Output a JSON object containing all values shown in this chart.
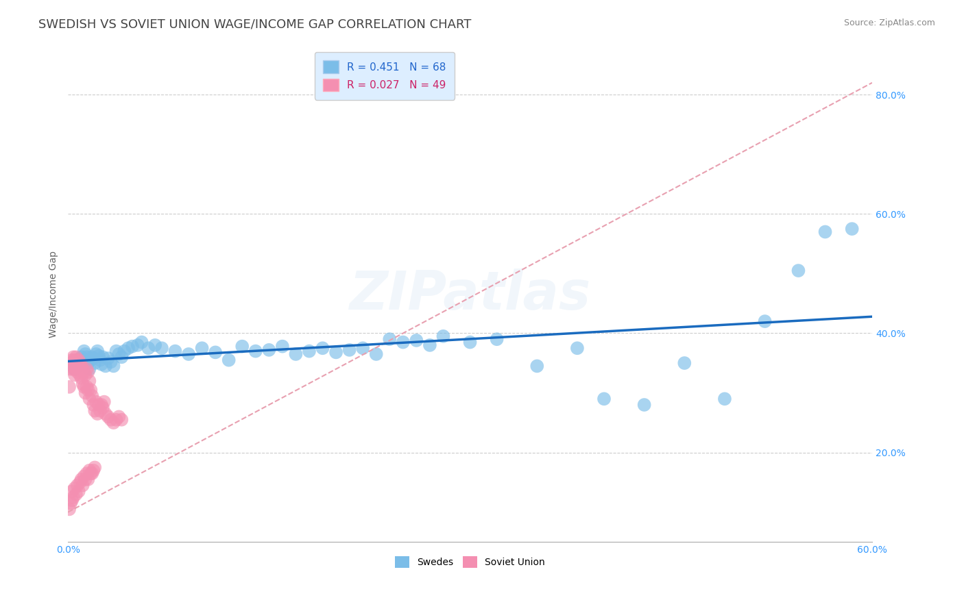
{
  "title": "SWEDISH VS SOVIET UNION WAGE/INCOME GAP CORRELATION CHART",
  "source": "Source: ZipAtlas.com",
  "ylabel": "Wage/Income Gap",
  "xlim": [
    0.0,
    0.6
  ],
  "ylim": [
    0.05,
    0.88
  ],
  "xticks": [
    0.0,
    0.1,
    0.2,
    0.3,
    0.4,
    0.5,
    0.6
  ],
  "xticklabels": [
    "0.0%",
    "",
    "",
    "",
    "",
    "",
    "60.0%"
  ],
  "ytick_positions": [
    0.2,
    0.4,
    0.6,
    0.8
  ],
  "ytick_labels": [
    "20.0%",
    "40.0%",
    "60.0%",
    "80.0%"
  ],
  "swedes_R": 0.451,
  "swedes_N": 68,
  "soviet_R": 0.027,
  "soviet_N": 49,
  "swedes_color": "#7bbde8",
  "soviet_color": "#f48fb1",
  "swedes_line_color": "#1a6bbf",
  "soviet_line_color": "#e8a0b0",
  "background_color": "#ffffff",
  "grid_color": "#cccccc",
  "watermark": "ZIPatlas",
  "legend_box_color": "#ddeeff",
  "swedes_x": [
    0.005,
    0.007,
    0.009,
    0.01,
    0.011,
    0.012,
    0.013,
    0.014,
    0.015,
    0.016,
    0.017,
    0.018,
    0.019,
    0.02,
    0.021,
    0.022,
    0.023,
    0.024,
    0.025,
    0.026,
    0.028,
    0.03,
    0.032,
    0.034,
    0.036,
    0.038,
    0.04,
    0.042,
    0.045,
    0.048,
    0.052,
    0.055,
    0.06,
    0.065,
    0.07,
    0.08,
    0.09,
    0.1,
    0.11,
    0.12,
    0.13,
    0.14,
    0.15,
    0.16,
    0.17,
    0.18,
    0.19,
    0.2,
    0.21,
    0.22,
    0.23,
    0.24,
    0.25,
    0.26,
    0.27,
    0.28,
    0.3,
    0.32,
    0.35,
    0.38,
    0.4,
    0.43,
    0.46,
    0.49,
    0.52,
    0.545,
    0.565,
    0.585
  ],
  "swedes_y": [
    0.34,
    0.345,
    0.35,
    0.36,
    0.355,
    0.37,
    0.365,
    0.36,
    0.35,
    0.34,
    0.355,
    0.36,
    0.358,
    0.35,
    0.365,
    0.37,
    0.362,
    0.355,
    0.348,
    0.36,
    0.345,
    0.358,
    0.352,
    0.345,
    0.37,
    0.365,
    0.36,
    0.37,
    0.375,
    0.378,
    0.38,
    0.385,
    0.375,
    0.38,
    0.375,
    0.37,
    0.365,
    0.375,
    0.368,
    0.355,
    0.378,
    0.37,
    0.372,
    0.378,
    0.365,
    0.37,
    0.375,
    0.368,
    0.372,
    0.375,
    0.365,
    0.39,
    0.385,
    0.388,
    0.38,
    0.395,
    0.385,
    0.39,
    0.345,
    0.375,
    0.29,
    0.28,
    0.35,
    0.29,
    0.42,
    0.505,
    0.57,
    0.575
  ],
  "soviet_x": [
    0.001,
    0.002,
    0.002,
    0.003,
    0.003,
    0.004,
    0.004,
    0.005,
    0.005,
    0.006,
    0.006,
    0.007,
    0.007,
    0.008,
    0.008,
    0.009,
    0.009,
    0.01,
    0.01,
    0.011,
    0.011,
    0.012,
    0.012,
    0.013,
    0.013,
    0.014,
    0.014,
    0.015,
    0.015,
    0.016,
    0.016,
    0.017,
    0.018,
    0.019,
    0.02,
    0.021,
    0.022,
    0.023,
    0.024,
    0.025,
    0.026,
    0.027,
    0.028,
    0.03,
    0.032,
    0.034,
    0.036,
    0.038,
    0.04
  ],
  "soviet_y": [
    0.31,
    0.34,
    0.35,
    0.345,
    0.355,
    0.34,
    0.36,
    0.33,
    0.355,
    0.34,
    0.36,
    0.335,
    0.355,
    0.34,
    0.355,
    0.33,
    0.35,
    0.325,
    0.345,
    0.315,
    0.34,
    0.31,
    0.335,
    0.3,
    0.33,
    0.31,
    0.34,
    0.305,
    0.335,
    0.29,
    0.32,
    0.305,
    0.295,
    0.28,
    0.27,
    0.285,
    0.265,
    0.28,
    0.27,
    0.28,
    0.275,
    0.285,
    0.265,
    0.26,
    0.255,
    0.25,
    0.255,
    0.26,
    0.255
  ],
  "soviet_outliers_x": [
    0.001,
    0.002,
    0.003,
    0.003,
    0.004,
    0.005,
    0.006,
    0.007,
    0.008,
    0.009,
    0.01,
    0.011,
    0.012,
    0.013,
    0.014,
    0.015,
    0.016,
    0.017,
    0.018,
    0.019,
    0.02
  ],
  "soviet_outliers_y": [
    0.105,
    0.115,
    0.12,
    0.135,
    0.125,
    0.14,
    0.13,
    0.145,
    0.135,
    0.15,
    0.155,
    0.145,
    0.16,
    0.155,
    0.165,
    0.155,
    0.17,
    0.165,
    0.165,
    0.17,
    0.175
  ],
  "title_fontsize": 13,
  "tick_fontsize": 10,
  "legend_fontsize": 11
}
